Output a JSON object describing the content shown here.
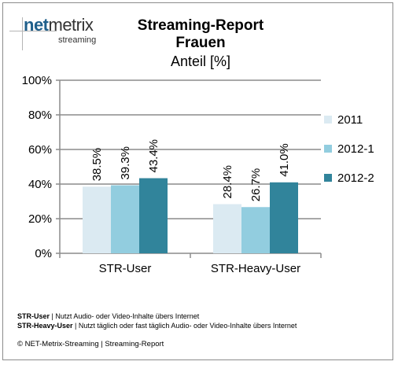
{
  "logo": {
    "brand_a": "net",
    "brand_b": "metrix",
    "sub": "streaming"
  },
  "chart_data": {
    "type": "bar",
    "title": "Streaming-Report",
    "subtitle": "Frauen",
    "ylabel": "Anteil [%]",
    "categories": [
      "STR-User",
      "STR-Heavy-User"
    ],
    "series": [
      {
        "name": "2011",
        "color": "#dbeaf2",
        "values": [
          38.5,
          28.4
        ],
        "labels": [
          "38.5%",
          "28.4%"
        ]
      },
      {
        "name": "2012-1",
        "color": "#92cddf",
        "values": [
          39.3,
          26.7
        ],
        "labels": [
          "39.3%",
          "26.7%"
        ]
      },
      {
        "name": "2012-2",
        "color": "#31849b",
        "values": [
          43.4,
          41.0
        ],
        "labels": [
          "43.4%",
          "41.0%"
        ]
      }
    ],
    "ylim": [
      0,
      100
    ],
    "yticks": [
      "0%",
      "20%",
      "40%",
      "60%",
      "80%",
      "100%"
    ],
    "grid": true,
    "legend": "right"
  },
  "notes": [
    {
      "term": "STR-User",
      "text": " | Nutzt Audio- oder Video-Inhalte übers Internet"
    },
    {
      "term": "STR-Heavy-User",
      "text": " | Nutzt täglich oder fast täglich Audio- oder Video-Inhalte übers Internet"
    }
  ],
  "copyright": "© NET-Metrix-Streaming | Streaming-Report"
}
